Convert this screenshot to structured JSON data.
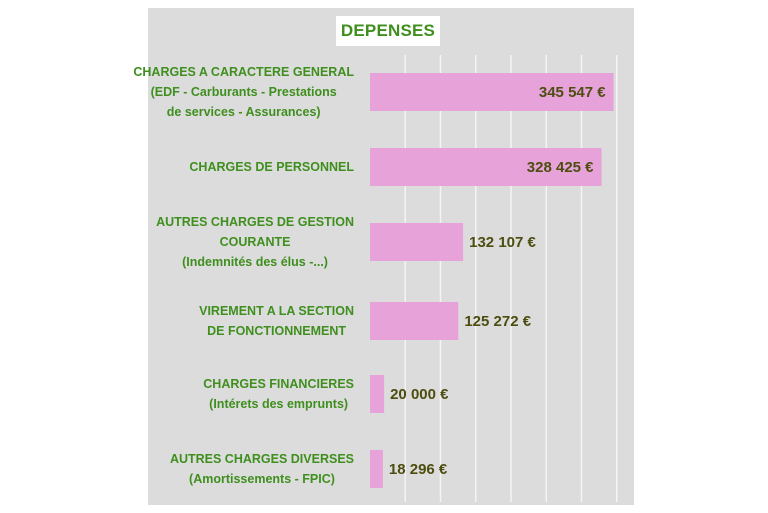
{
  "chart_data": {
    "type": "bar",
    "orientation": "horizontal",
    "title": "DEPENSES",
    "categories": [
      [
        "CHARGES A CARACTERE GENERAL",
        "(EDF - Carburants - Prestations",
        "de services - Assurances)"
      ],
      [
        "CHARGES DE PERSONNEL"
      ],
      [
        "AUTRES CHARGES DE GESTION",
        "COURANTE",
        "(Indemnités des élus -...)"
      ],
      [
        "VIREMENT A LA SECTION",
        "DE FONCTIONNEMENT"
      ],
      [
        "CHARGES FINANCIERES",
        "(Intérets des emprunts)"
      ],
      [
        "AUTRES CHARGES DIVERSES",
        "(Amortissements - FPIC)"
      ]
    ],
    "values": [
      345547,
      328425,
      132107,
      125272,
      20000,
      18296
    ],
    "data_labels": [
      "345 547 €",
      "328 425 €",
      "132 107 €",
      "125 272 €",
      "20 000 €",
      "18 296 €"
    ],
    "xlim": [
      0,
      400000
    ],
    "grid": true,
    "bar_color": "#e7a3d9",
    "label_color": "#3f8f1e",
    "value_color": "#4d4d10",
    "background_color": "#dcdcdc"
  }
}
